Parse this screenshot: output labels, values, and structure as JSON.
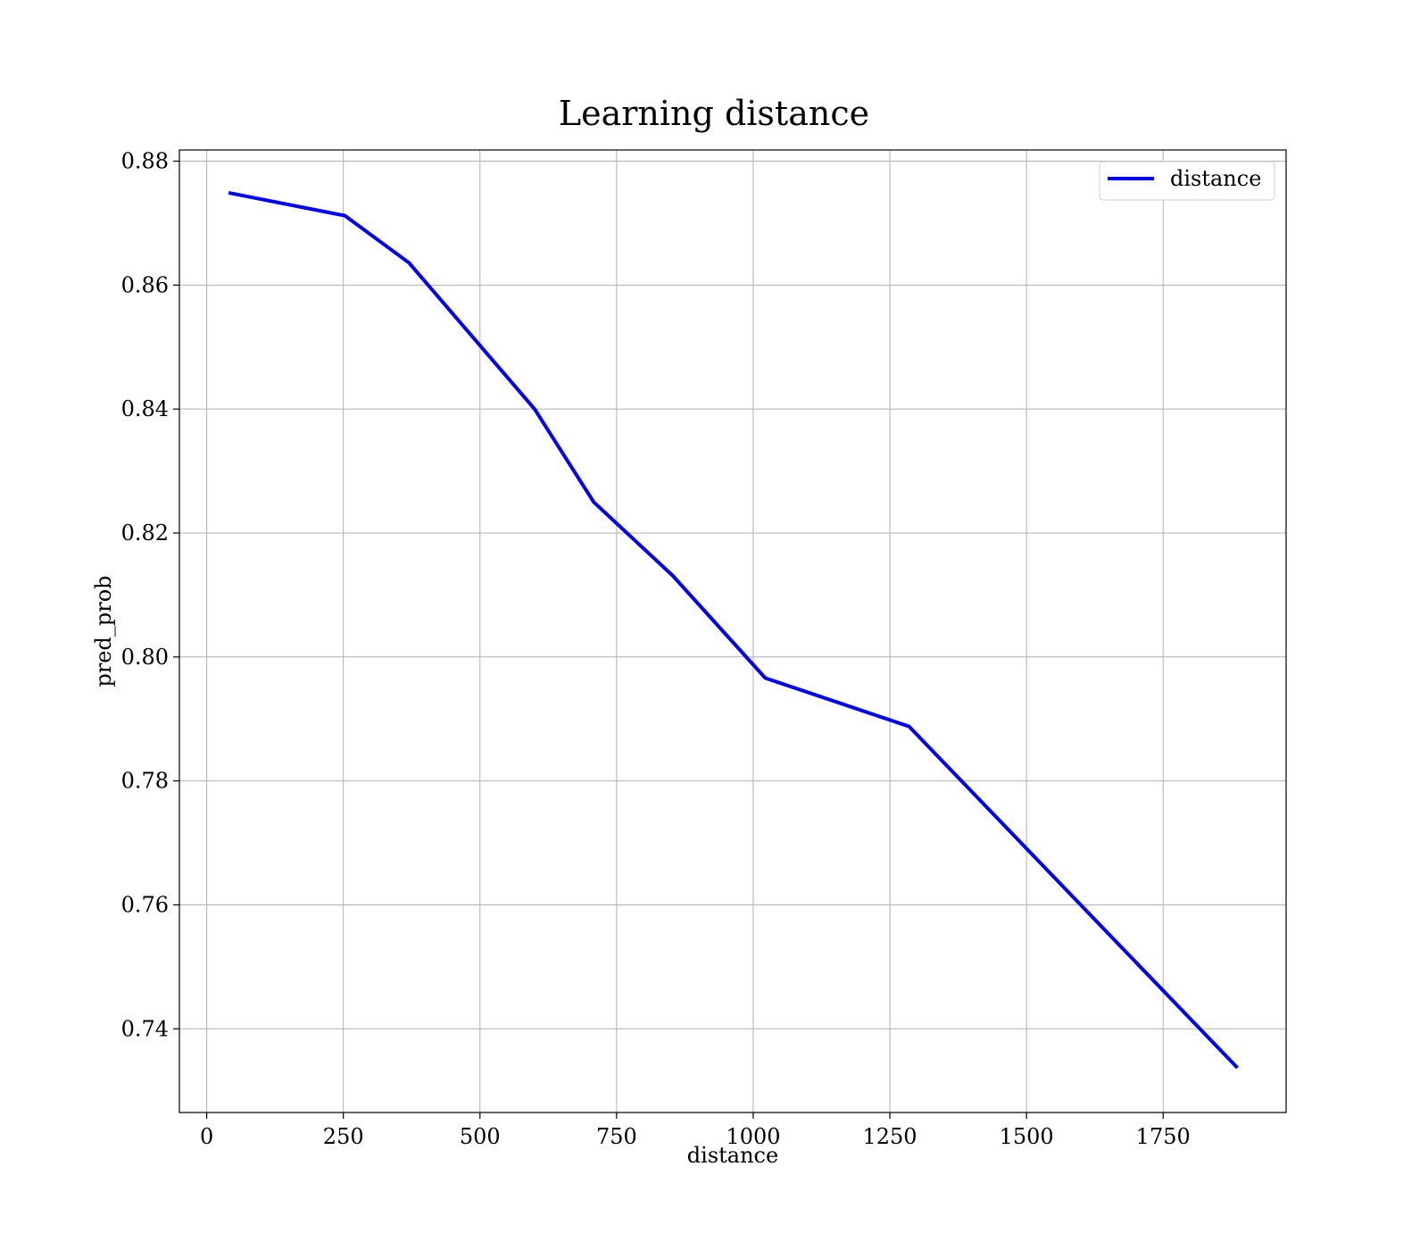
{
  "chart_data": {
    "type": "line",
    "title": "Learning distance",
    "xlabel": "distance",
    "ylabel": "pred_prob",
    "xlim": [
      -50,
      1975
    ],
    "ylim": [
      0.7265,
      0.8818
    ],
    "xticks": [
      0,
      250,
      500,
      750,
      1000,
      1250,
      1500,
      1750
    ],
    "xtick_labels": [
      "0",
      "250",
      "500",
      "750",
      "1000",
      "1250",
      "1500",
      "1750"
    ],
    "yticks": [
      0.74,
      0.76,
      0.78,
      0.8,
      0.82,
      0.84,
      0.86,
      0.88
    ],
    "ytick_labels": [
      "0.74",
      "0.76",
      "0.78",
      "0.80",
      "0.82",
      "0.84",
      "0.86",
      "0.88"
    ],
    "grid": true,
    "legend_position": "top-right",
    "series": [
      {
        "name": "distance",
        "color": "#0000ff",
        "x": [
          40,
          253,
          370,
          600,
          708,
          853,
          1022,
          1285,
          1886
        ],
        "y": [
          0.8749,
          0.8712,
          0.8636,
          0.84,
          0.825,
          0.8131,
          0.7966,
          0.7888,
          0.7337
        ]
      }
    ]
  }
}
